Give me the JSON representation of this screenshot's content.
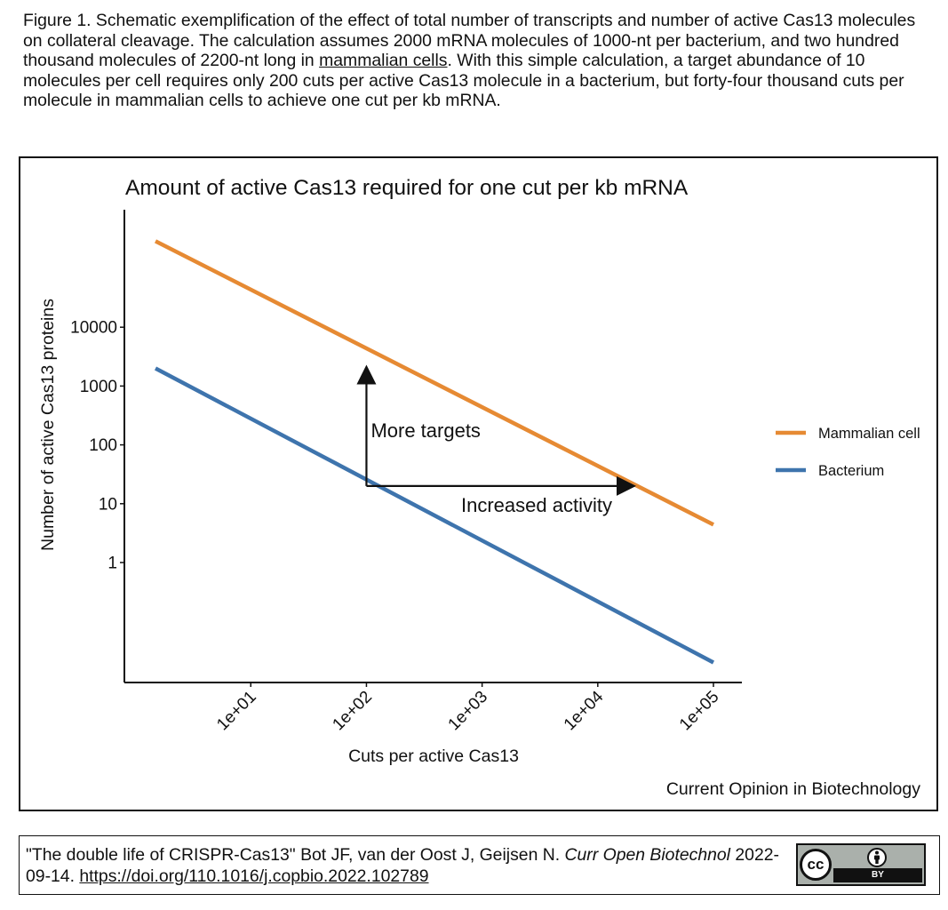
{
  "caption": {
    "text_before_link": "Figure 1. Schematic exemplification of the effect of total number of transcripts and number of active Cas13 molecules on collateral cleavage. The calculation assumes 2000 mRNA molecules of 1000-nt per bacterium, and two hundred thousand molecules of 2200-nt long in ",
    "link_text": "mammalian cells",
    "text_after_link": ". With this simple calculation, a target abundance of 10 molecules per cell requires only 200 cuts per active Cas13 molecule in a bacterium, but forty-four thousand cuts per molecule in mammalian cells to achieve one cut per kb mRNA."
  },
  "chart_data": {
    "type": "line",
    "title": "Amount of active Cas13 required for one cut per kb mRNA",
    "xlabel": "Cuts per active Cas13",
    "ylabel": "Number of active Cas13 proteins",
    "x_scale": "log",
    "y_scale": "log",
    "xlim": [
      1.4,
      100000
    ],
    "ylim": [
      0.02,
      600000
    ],
    "x_ticks": [
      {
        "value": 10,
        "label": "1e+01"
      },
      {
        "value": 100,
        "label": "1e+02"
      },
      {
        "value": 1000,
        "label": "1e+03"
      },
      {
        "value": 10000,
        "label": "1e+04"
      },
      {
        "value": 100000,
        "label": "1e+05"
      }
    ],
    "y_ticks": [
      {
        "value": 1,
        "label": "1"
      },
      {
        "value": 10,
        "label": "10"
      },
      {
        "value": 100,
        "label": "100"
      },
      {
        "value": 1000,
        "label": "1000"
      },
      {
        "value": 10000,
        "label": "10000"
      }
    ],
    "grid": false,
    "legend_position": "right",
    "series": [
      {
        "name": "Mammalian cell",
        "color": "#e68a33",
        "x": [
          1.5,
          100000
        ],
        "y": [
          290000,
          4.4
        ]
      },
      {
        "name": "Bacterium",
        "color": "#3e74ad",
        "x": [
          1.5,
          100000
        ],
        "y": [
          2000,
          0.02
        ]
      }
    ],
    "annotations": [
      {
        "text": "More targets",
        "from": [
          100,
          20
        ],
        "to": [
          100,
          2000
        ]
      },
      {
        "text": "Increased activity",
        "from": [
          100,
          20
        ],
        "to": [
          20000,
          20
        ]
      }
    ],
    "source": "Current Opinion in Biotechnology"
  },
  "citation": {
    "text_start": "\"The double life of CRISPR-Cas13\" Bot JF, van der Oost J, Geijsen N. ",
    "journal": "Curr Open Biotechnol",
    "date": " 2022-09-14. ",
    "doi": "https://doi.org/110.1016/j.copbio.2022.102789",
    "license": {
      "cc": "cc",
      "by": "BY"
    }
  }
}
